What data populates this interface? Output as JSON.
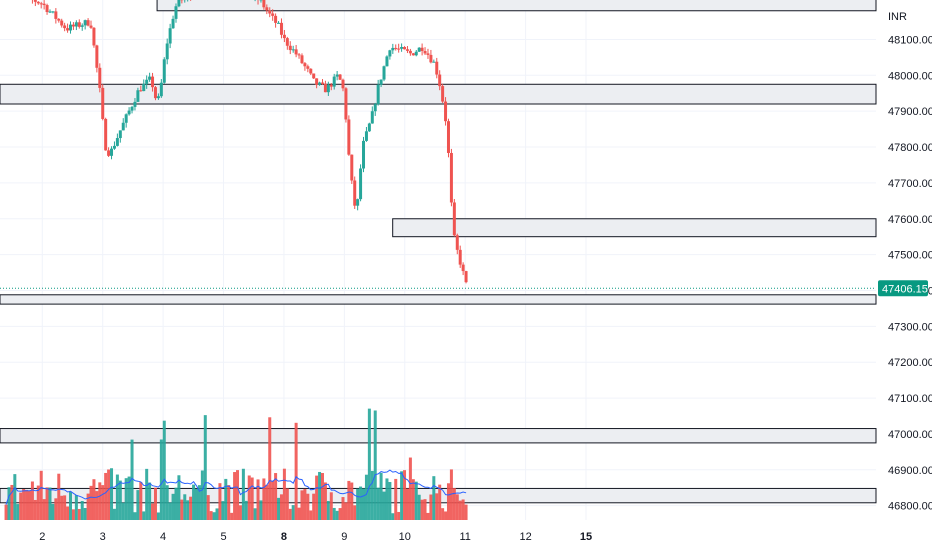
{
  "chart_data": {
    "type": "candlestick",
    "currency": "INR",
    "y_range": [
      46760,
      48210
    ],
    "y_ticks": [
      48100,
      48000,
      47900,
      47800,
      47700,
      47600,
      47500,
      47400,
      47300,
      47200,
      47100,
      47000,
      46900,
      46800
    ],
    "y_tick_labels": [
      "48100.00",
      "48000.00",
      "47900.00",
      "47800.00",
      "47700.00",
      "47600.00",
      "47500.00",
      "47400.00",
      "47300.00",
      "47200.00",
      "47100.00",
      "47000.00",
      "46900.00",
      "46800.00"
    ],
    "x_range": [
      1.3,
      15.8
    ],
    "x_ticks": [
      {
        "value": 2,
        "label": "2",
        "bold": false
      },
      {
        "value": 3,
        "label": "3",
        "bold": false
      },
      {
        "value": 4,
        "label": "4",
        "bold": false
      },
      {
        "value": 5,
        "label": "5",
        "bold": false
      },
      {
        "value": 6,
        "label": "8",
        "bold": true
      },
      {
        "value": 7,
        "label": "9",
        "bold": false
      },
      {
        "value": 8,
        "label": "10",
        "bold": false
      },
      {
        "value": 9,
        "label": "11",
        "bold": false
      },
      {
        "value": 10,
        "label": "12",
        "bold": false
      },
      {
        "value": 11,
        "label": "15",
        "bold": true
      }
    ],
    "last_price": 47406.15,
    "last_price_label": "47406.15",
    "zones": [
      {
        "low": 48180,
        "high": 48215,
        "x_from": 3.9
      },
      {
        "low": 47920,
        "high": 47975,
        "x_from": null
      },
      {
        "low": 47550,
        "high": 47600,
        "x_from": 7.8
      },
      {
        "low": 47362,
        "high": 47388,
        "x_from": null
      },
      {
        "low": 46975,
        "high": 47015,
        "x_from": null
      },
      {
        "low": 46808,
        "high": 46848,
        "x_from": null
      }
    ],
    "price_path": [
      [
        1.4,
        48240
      ],
      [
        2.0,
        48200
      ],
      [
        2.4,
        48130
      ],
      [
        2.8,
        48150
      ],
      [
        2.95,
        47960
      ],
      [
        3.0,
        47870
      ],
      [
        3.05,
        47800
      ],
      [
        3.12,
        47780
      ],
      [
        3.3,
        47850
      ],
      [
        3.6,
        47960
      ],
      [
        3.8,
        47990
      ],
      [
        3.9,
        47920
      ],
      [
        3.95,
        47950
      ],
      [
        4.05,
        48080
      ],
      [
        4.2,
        48190
      ],
      [
        4.3,
        48210
      ],
      [
        4.6,
        48240
      ],
      [
        5.2,
        48240
      ],
      [
        5.6,
        48210
      ],
      [
        5.8,
        48160
      ],
      [
        5.9,
        48140
      ],
      [
        6.0,
        48100
      ],
      [
        6.2,
        48060
      ],
      [
        6.4,
        48010
      ],
      [
        6.5,
        47980
      ],
      [
        6.7,
        47960
      ],
      [
        6.9,
        48000
      ],
      [
        7.0,
        47950
      ],
      [
        7.05,
        47820
      ],
      [
        7.1,
        47730
      ],
      [
        7.15,
        47660
      ],
      [
        7.2,
        47610
      ],
      [
        7.3,
        47800
      ],
      [
        7.45,
        47880
      ],
      [
        7.55,
        47960
      ],
      [
        7.75,
        48080
      ],
      [
        8.1,
        48060
      ],
      [
        8.3,
        48080
      ],
      [
        8.5,
        48030
      ],
      [
        8.6,
        47960
      ],
      [
        8.7,
        47850
      ],
      [
        8.75,
        47700
      ],
      [
        8.8,
        47560
      ],
      [
        8.85,
        47520
      ],
      [
        8.95,
        47460
      ],
      [
        9.0,
        47420
      ],
      [
        9.05,
        47406
      ]
    ],
    "volume_seed": 7
  },
  "colors": {
    "up": "#26a69a",
    "down": "#ef5350",
    "volume_ma": "#2962ff",
    "zone_fill": "#eceef2",
    "zone_border": "#131722",
    "grid": "#f0f3fa",
    "last_price": "#089981"
  }
}
